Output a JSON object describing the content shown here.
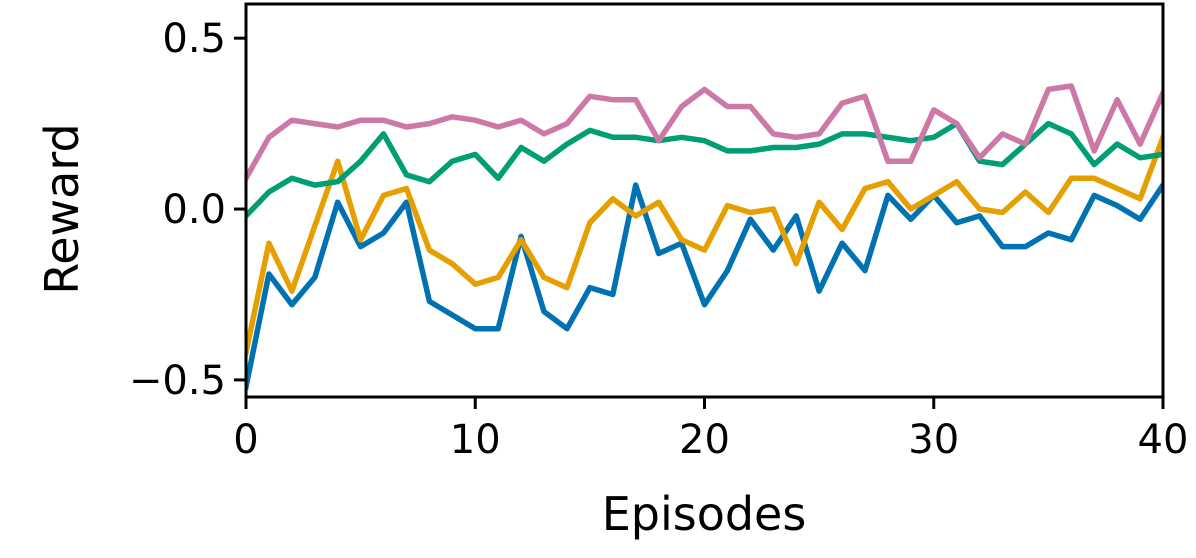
{
  "chart_data": {
    "type": "line",
    "title": "",
    "xlabel": "Episodes",
    "ylabel": "Reward",
    "xlim": [
      0,
      40
    ],
    "ylim": [
      -0.55,
      0.6
    ],
    "xticks": [
      0,
      10,
      20,
      30,
      40
    ],
    "xtick_labels": [
      "0",
      "10",
      "20",
      "30",
      "40"
    ],
    "yticks": [
      -0.5,
      0.0,
      0.5
    ],
    "ytick_labels": [
      "−0.5",
      "0.0",
      "0.5"
    ],
    "grid": false,
    "legend": "none",
    "x": [
      0,
      1,
      2,
      3,
      4,
      5,
      6,
      7,
      8,
      9,
      10,
      11,
      12,
      13,
      14,
      15,
      16,
      17,
      18,
      19,
      20,
      21,
      22,
      23,
      24,
      25,
      26,
      27,
      28,
      29,
      30,
      31,
      32,
      33,
      34,
      35,
      36,
      37,
      38,
      39,
      40
    ],
    "series": [
      {
        "color": "#0072b2",
        "values": [
          -0.52,
          -0.19,
          -0.28,
          -0.2,
          0.02,
          -0.11,
          -0.07,
          0.02,
          -0.27,
          -0.31,
          -0.35,
          -0.35,
          -0.08,
          -0.3,
          -0.35,
          -0.23,
          -0.25,
          0.07,
          -0.13,
          -0.1,
          -0.28,
          -0.18,
          -0.03,
          -0.12,
          -0.02,
          -0.24,
          -0.1,
          -0.18,
          0.04,
          -0.03,
          0.04,
          -0.04,
          -0.02,
          -0.11,
          -0.11,
          -0.07,
          -0.09,
          0.04,
          0.01,
          -0.03,
          0.07
        ]
      },
      {
        "color": "#e69f00",
        "values": [
          -0.42,
          -0.1,
          -0.24,
          -0.05,
          0.14,
          -0.09,
          0.04,
          0.06,
          -0.12,
          -0.16,
          -0.22,
          -0.2,
          -0.09,
          -0.2,
          -0.23,
          -0.04,
          0.03,
          -0.02,
          0.02,
          -0.09,
          -0.12,
          0.01,
          -0.01,
          0.0,
          -0.16,
          0.02,
          -0.06,
          0.06,
          0.08,
          0.0,
          0.04,
          0.08,
          0.0,
          -0.01,
          0.05,
          -0.01,
          0.09,
          0.09,
          0.06,
          0.03,
          0.21
        ]
      },
      {
        "color": "#009e73",
        "values": [
          -0.02,
          0.05,
          0.09,
          0.07,
          0.08,
          0.14,
          0.22,
          0.1,
          0.08,
          0.14,
          0.16,
          0.09,
          0.18,
          0.14,
          0.19,
          0.23,
          0.21,
          0.21,
          0.2,
          0.21,
          0.2,
          0.17,
          0.17,
          0.18,
          0.18,
          0.19,
          0.22,
          0.22,
          0.21,
          0.2,
          0.21,
          0.25,
          0.14,
          0.13,
          0.19,
          0.25,
          0.22,
          0.13,
          0.19,
          0.15,
          0.16
        ]
      },
      {
        "color": "#cc79a7",
        "values": [
          0.09,
          0.21,
          0.26,
          0.25,
          0.24,
          0.26,
          0.26,
          0.24,
          0.25,
          0.27,
          0.26,
          0.24,
          0.26,
          0.22,
          0.25,
          0.33,
          0.32,
          0.32,
          0.2,
          0.3,
          0.35,
          0.3,
          0.3,
          0.22,
          0.21,
          0.22,
          0.31,
          0.33,
          0.14,
          0.14,
          0.29,
          0.25,
          0.15,
          0.22,
          0.19,
          0.35,
          0.36,
          0.17,
          0.32,
          0.19,
          0.34
        ]
      }
    ]
  }
}
